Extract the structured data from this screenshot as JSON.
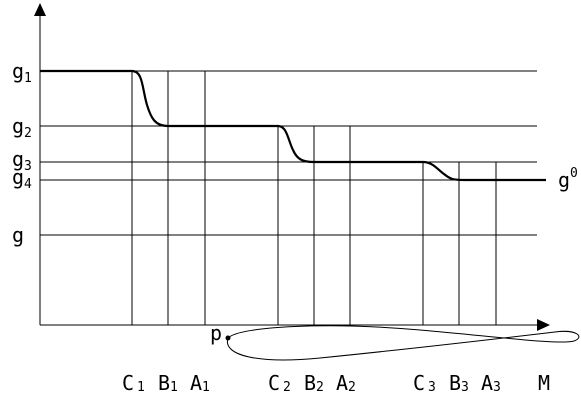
{
  "y_levels": [
    {
      "id": "g1",
      "base": "g",
      "sub": "1",
      "sup": ""
    },
    {
      "id": "g2",
      "base": "g",
      "sub": "2",
      "sup": ""
    },
    {
      "id": "g3",
      "base": "g",
      "sub": "3",
      "sup": ""
    },
    {
      "id": "g4",
      "base": "g",
      "sub": "4",
      "sup": ""
    },
    {
      "id": "g",
      "base": "g",
      "sub": "",
      "sup": ""
    }
  ],
  "right_label": {
    "base": "g",
    "sup": "0"
  },
  "point_label": "p",
  "bottom_labels": [
    {
      "letter": "C",
      "sub": "1"
    },
    {
      "letter": "B",
      "sub": "1"
    },
    {
      "letter": "A",
      "sub": "1"
    },
    {
      "letter": "C",
      "sub": "2"
    },
    {
      "letter": "B",
      "sub": "2"
    },
    {
      "letter": "A",
      "sub": "2"
    },
    {
      "letter": "C",
      "sub": "3"
    },
    {
      "letter": "B",
      "sub": "3"
    },
    {
      "letter": "A",
      "sub": "3"
    },
    {
      "letter": "M",
      "sub": ""
    }
  ]
}
